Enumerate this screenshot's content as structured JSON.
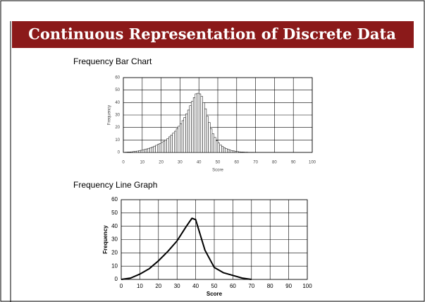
{
  "title": "Continuous Representation of Discrete Data",
  "chart_data": [
    {
      "type": "bar",
      "title": "Frequency Bar Chart",
      "xlabel": "Score",
      "ylabel": "Frequency",
      "x": [
        0,
        1,
        2,
        3,
        4,
        5,
        6,
        7,
        8,
        9,
        10,
        11,
        12,
        13,
        14,
        15,
        16,
        17,
        18,
        19,
        20,
        21,
        22,
        23,
        24,
        25,
        26,
        27,
        28,
        29,
        30,
        31,
        32,
        33,
        34,
        35,
        36,
        37,
        38,
        39,
        40,
        41,
        42,
        43,
        44,
        45,
        46,
        47,
        48,
        49,
        50,
        51,
        52,
        53,
        54,
        55,
        56,
        57,
        58,
        59,
        60,
        61,
        62,
        63,
        64,
        65,
        66,
        67,
        68,
        69,
        70
      ],
      "values": [
        0,
        0.2,
        0.3,
        0.4,
        0.5,
        0.7,
        0.9,
        1.1,
        1.4,
        1.7,
        2,
        2.4,
        2.8,
        3.3,
        3.8,
        4.4,
        5,
        5.7,
        6.4,
        7.2,
        8,
        9,
        10,
        11,
        12.5,
        14,
        15.5,
        17,
        19,
        21,
        23,
        25.5,
        28,
        31,
        34,
        37.5,
        41,
        44,
        47,
        47.5,
        47,
        45,
        40,
        35,
        29,
        24,
        19,
        15,
        12,
        9.5,
        7.5,
        6,
        4.8,
        3.8,
        3,
        2.4,
        1.9,
        1.5,
        1.2,
        0.9,
        0.7,
        0.5,
        0.4,
        0.3,
        0.2,
        0.2,
        0.1,
        0.1,
        0.1,
        0,
        0
      ],
      "color": "#ffffff",
      "xlim": [
        0,
        100
      ],
      "xticks": [
        0,
        10,
        20,
        30,
        40,
        50,
        60,
        70,
        80,
        90,
        100
      ],
      "ylim": [
        0,
        60
      ],
      "yticks": [
        0,
        10,
        20,
        30,
        40,
        50,
        60
      ],
      "grid": true
    },
    {
      "type": "line",
      "title": "Frequency Line Graph",
      "xlabel": "Score",
      "ylabel": "Frequency",
      "x": [
        0,
        5,
        10,
        15,
        20,
        25,
        30,
        35,
        38,
        40,
        45,
        50,
        55,
        60,
        65,
        70
      ],
      "values": [
        0,
        1,
        4,
        8,
        14,
        21,
        29,
        40,
        46,
        45,
        22,
        9,
        5,
        3,
        1,
        0
      ],
      "color": "#000000",
      "xlim": [
        0,
        100
      ],
      "xticks": [
        0,
        10,
        20,
        30,
        40,
        50,
        60,
        70,
        80,
        90,
        100
      ],
      "ylim": [
        0,
        60
      ],
      "yticks": [
        0,
        10,
        20,
        30,
        40,
        50,
        60
      ],
      "grid": true
    }
  ]
}
